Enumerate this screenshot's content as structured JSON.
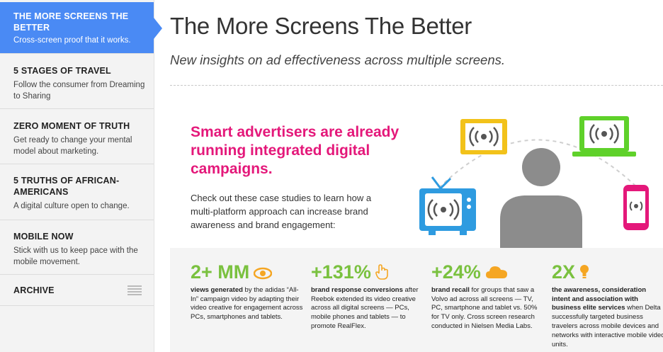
{
  "sidebar": {
    "items": [
      {
        "title": "The More Screens The Better",
        "desc": "Cross-screen proof that it works."
      },
      {
        "title": "5 Stages of Travel",
        "desc": "Follow the consumer from Dreaming to Sharing"
      },
      {
        "title": "Zero Moment of Truth",
        "desc": "Get ready to change your mental model about marketing."
      },
      {
        "title": "5 Truths of African-Americans",
        "desc": "A digital culture open to change."
      },
      {
        "title": "Mobile Now",
        "desc": "Stick with us to keep pace with the mobile movement."
      },
      {
        "title": "Archive",
        "desc": ""
      }
    ]
  },
  "main": {
    "title": "The More Screens The Better",
    "subtitle": "New insights on ad effectiveness across multiple screens.",
    "headline": "Smart advertisers are already running integrated digital campaigns.",
    "body": "Check out these case studies to learn how a multi-platform approach can increase brand awareness and brand engagement:"
  },
  "stats": [
    {
      "num": "2+ MM",
      "icon": "eye-icon",
      "bold": "views generated",
      "rest": " by the adidas “All-In” campaign video by adapting their video creative for engagement across PCs, smartphones and tablets."
    },
    {
      "num": "+131%",
      "icon": "hand-pointer-icon",
      "bold": "brand response conversions",
      "rest": " after Reebok extended its video creative across all digital screens — PCs, mobile phones and tablets — to promote RealFlex."
    },
    {
      "num": "+24%",
      "icon": "cloud-icon",
      "bold": "brand recall",
      "rest": " for groups that saw a Volvo ad across all screens — TV, PC, smartphone and tablet  vs. 50% for TV only. Cross screen research conducted in Nielsen Media Labs."
    },
    {
      "num": "2X",
      "icon": "lightbulb-icon",
      "bold": "the awareness, consideration intent and association with business elite services",
      "rest": " when Delta successfully targeted business travelers across mobile devices and networks with interactive mobile video units."
    }
  ],
  "colors": {
    "accent_blue": "#4a8af4",
    "headline_pink": "#e4187a",
    "stat_green": "#7ac13f",
    "tv_blue": "#2e9be0",
    "monitor_yellow": "#f2c21a",
    "laptop_green": "#5fd12a",
    "phone_pink": "#e4187a",
    "icon_orange": "#f5a623"
  }
}
